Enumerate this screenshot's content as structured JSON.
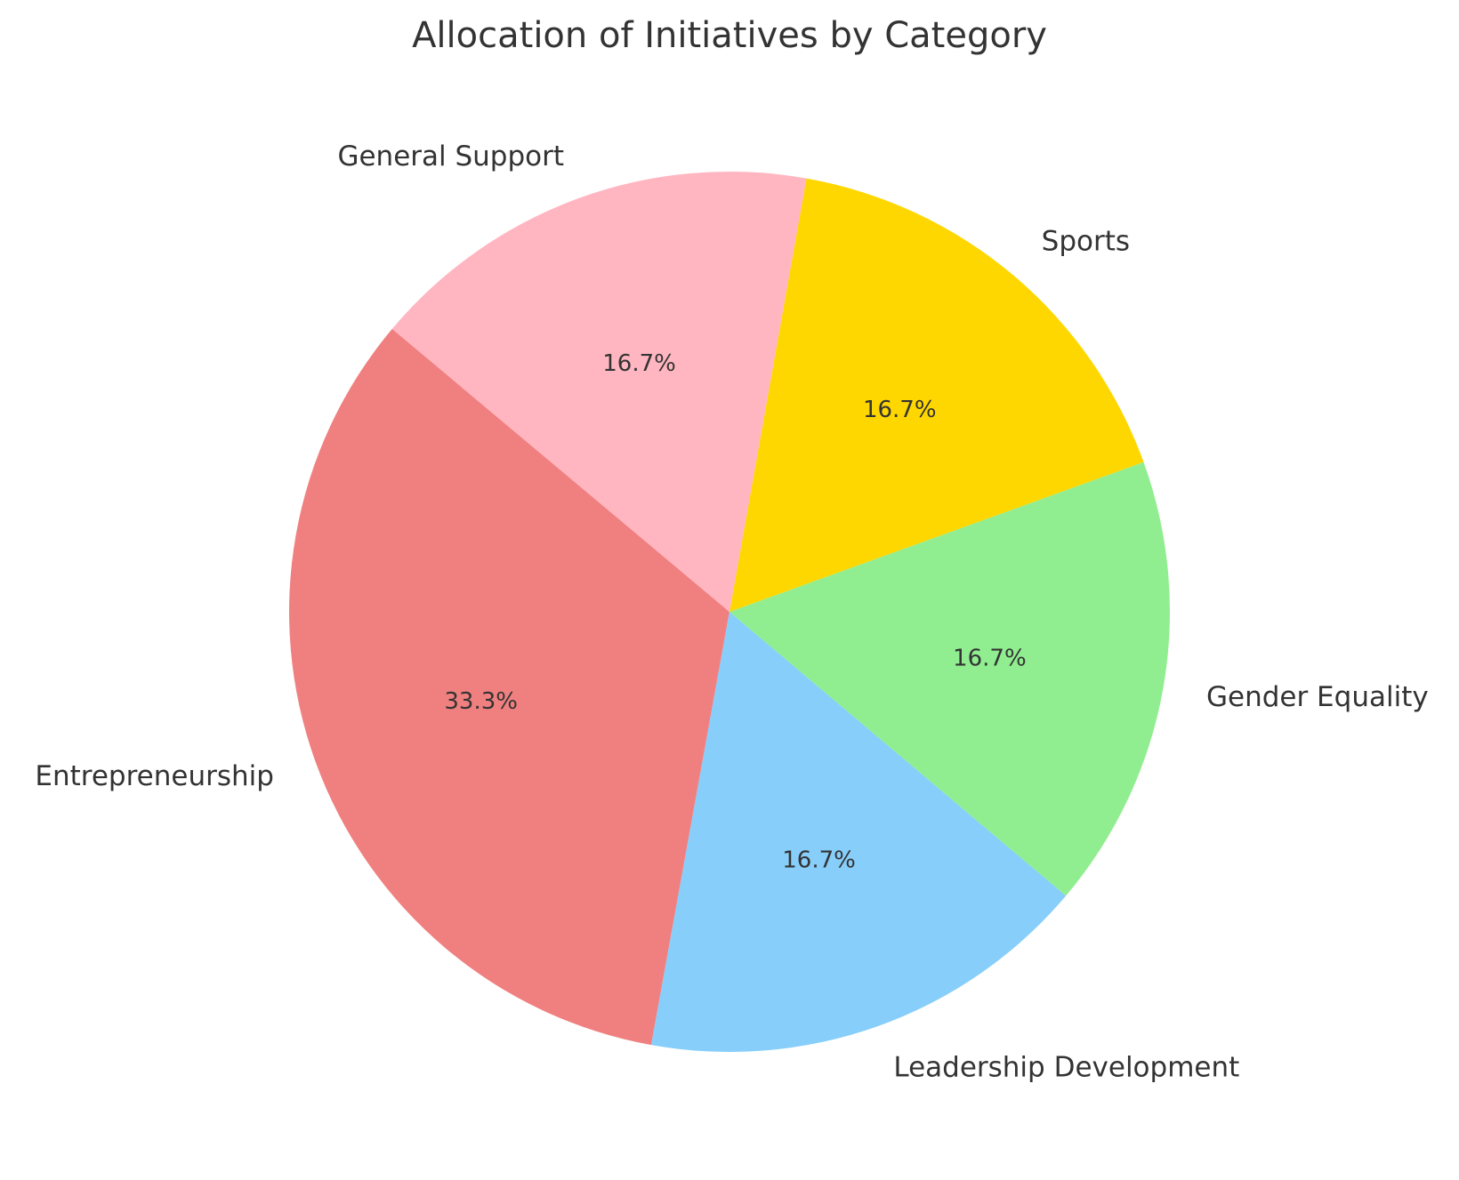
{
  "chart_data": {
    "type": "pie",
    "title": "Allocation of Initiatives by Category",
    "start_angle_deg": 140,
    "direction": "counterclockwise",
    "slices": [
      {
        "label": "Entrepreneurship",
        "value": 33.3,
        "pct_label": "33.3%",
        "color": "#F08080"
      },
      {
        "label": "Leadership Development",
        "value": 16.7,
        "pct_label": "16.7%",
        "color": "#87CEFA"
      },
      {
        "label": "Gender Equality",
        "value": 16.7,
        "pct_label": "16.7%",
        "color": "#90EE90"
      },
      {
        "label": "Sports",
        "value": 16.7,
        "pct_label": "16.7%",
        "color": "#FFD700"
      },
      {
        "label": "General Support",
        "value": 16.7,
        "pct_label": "16.7%",
        "color": "#FFB6C1"
      }
    ]
  }
}
